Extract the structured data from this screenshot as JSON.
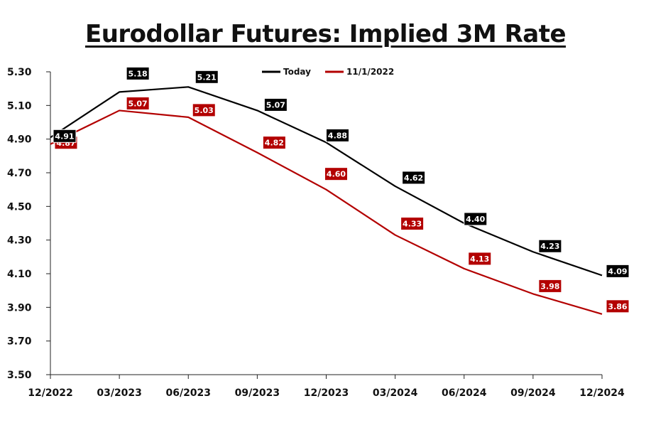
{
  "chart_data": {
    "type": "line",
    "title": "Eurodollar Futures: Implied 3M Rate",
    "categories": [
      "12/2022",
      "03/2023",
      "06/2023",
      "09/2023",
      "12/2023",
      "03/2024",
      "06/2024",
      "09/2024",
      "12/2024"
    ],
    "y_ticks": [
      "5.30",
      "5.10",
      "4.90",
      "4.70",
      "4.50",
      "4.30",
      "4.10",
      "3.90",
      "3.70",
      "3.50"
    ],
    "ylim": [
      3.5,
      5.3
    ],
    "grid": false,
    "legend_position": "top-center",
    "series": [
      {
        "name": "Today",
        "color": "#000000",
        "values": [
          4.91,
          5.18,
          5.21,
          5.07,
          4.88,
          4.62,
          4.4,
          4.23,
          4.09
        ],
        "labels": [
          "4.91",
          "5.18",
          "5.21",
          "5.07",
          "4.88",
          "4.62",
          "4.40",
          "4.23",
          "4.09"
        ]
      },
      {
        "name": "11/1/2022",
        "color": "#b30000",
        "values": [
          4.87,
          5.07,
          5.03,
          4.82,
          4.6,
          4.33,
          4.13,
          3.98,
          3.86
        ],
        "labels": [
          "4.87",
          "5.07",
          "5.03",
          "4.82",
          "4.60",
          "4.33",
          "4.13",
          "3.98",
          "3.86"
        ]
      }
    ]
  }
}
